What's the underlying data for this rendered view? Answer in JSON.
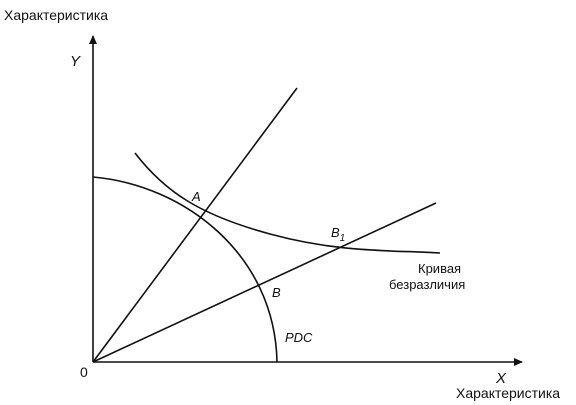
{
  "y_axis": {
    "title": "Характеристика",
    "letter": "Y"
  },
  "x_axis": {
    "title": "Характеристика",
    "letter": "X"
  },
  "origin": "0",
  "points": {
    "a": "A",
    "b": "B",
    "b1": {
      "letter": "B",
      "subscript": "1"
    }
  },
  "curves": {
    "indifference": [
      "Кривая",
      "безразличия"
    ],
    "pdc": "PDC"
  }
}
